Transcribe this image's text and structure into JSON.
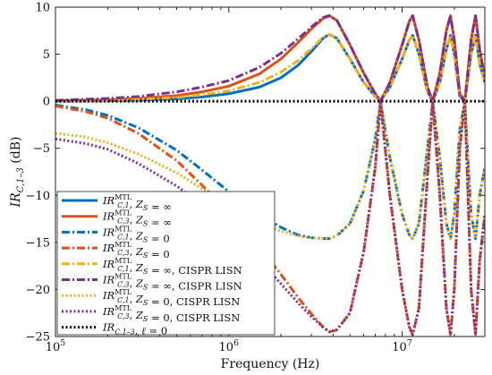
{
  "chart_data": {
    "type": "line",
    "xlabel": "Frequency (Hz)",
    "ylabel": "IR_{C,1-3} (dB)",
    "xscale": "log",
    "xlim": [
      100000,
      30000000
    ],
    "ylim": [
      -25,
      10
    ],
    "x_ticks": [
      {
        "value": 100000,
        "base": "10",
        "exp": "5"
      },
      {
        "value": 1000000,
        "base": "10",
        "exp": "6"
      },
      {
        "value": 10000000,
        "base": "10",
        "exp": "7"
      }
    ],
    "y_ticks": [
      10,
      5,
      0,
      -5,
      -10,
      -15,
      -20,
      -25
    ],
    "grid": false,
    "legend_position": "lower-left",
    "series": [
      {
        "name": "IR_{C,1}^{MTL}, Z_S = ∞",
        "color": "#0072BD",
        "dash": "solid",
        "x": [
          100000,
          200000,
          300000,
          500000,
          700000,
          1000000,
          1500000,
          2000000,
          2500000,
          3000000,
          3500000,
          3800000,
          4200000,
          5000000,
          6000000,
          7000000,
          7500000,
          8500000,
          10000000,
          11000000,
          11500000,
          12500000,
          14000000,
          15000000,
          16500000,
          18000000,
          19000000,
          20000000,
          21500000,
          23000000,
          25000000,
          26500000,
          28000000,
          30000000
        ],
        "y": [
          0,
          0.05,
          0.1,
          0.25,
          0.45,
          0.8,
          1.5,
          2.5,
          3.8,
          5.3,
          6.7,
          7.1,
          6.7,
          4.5,
          2.0,
          0.5,
          0.0,
          1.5,
          4.5,
          6.5,
          7.0,
          5.0,
          1.0,
          0.0,
          2.0,
          5.5,
          7.0,
          5.0,
          0.5,
          0.0,
          5.0,
          7.0,
          4.0,
          2.0
        ]
      },
      {
        "name": "IR_{C,3}^{MTL}, Z_S = ∞",
        "color": "#D95319",
        "dash": "solid",
        "x": [
          100000,
          200000,
          300000,
          500000,
          700000,
          1000000,
          1500000,
          2000000,
          2500000,
          3000000,
          3500000,
          3800000,
          4200000,
          5000000,
          6000000,
          7000000,
          7500000,
          8500000,
          10000000,
          11000000,
          11500000,
          12500000,
          14000000,
          15000000,
          16500000,
          18000000,
          19000000,
          20000000,
          21500000,
          23000000,
          25000000,
          26500000,
          28000000,
          30000000
        ],
        "y": [
          0.05,
          0.15,
          0.3,
          0.6,
          1.0,
          1.6,
          2.9,
          4.5,
          6.2,
          7.7,
          8.8,
          9.1,
          8.6,
          6.0,
          3.0,
          0.8,
          0.0,
          2.0,
          6.0,
          8.5,
          9.1,
          6.5,
          1.5,
          0.0,
          3.0,
          7.5,
          9.1,
          6.5,
          0.8,
          0.0,
          6.5,
          9.1,
          5.5,
          2.5
        ]
      },
      {
        "name": "IR_{C,1}^{MTL}, Z_S = 0",
        "color": "#0072BD",
        "dash": "dashdot",
        "x": [
          100000,
          150000,
          200000,
          300000,
          500000,
          700000,
          1000000,
          1500000,
          2000000,
          2500000,
          3000000,
          3500000,
          3800000,
          4200000,
          5000000,
          6000000,
          7000000,
          7500000,
          8500000,
          10000000,
          11000000,
          11500000,
          12500000,
          14000000,
          15000000,
          16500000,
          18000000,
          19000000,
          20000000,
          21500000,
          23000000,
          25000000,
          26500000,
          28000000,
          30000000
        ],
        "y": [
          -0.4,
          -0.9,
          -1.5,
          -2.8,
          -5.2,
          -7.3,
          -9.6,
          -12.0,
          -13.4,
          -14.2,
          -14.5,
          -14.6,
          -14.6,
          -14.3,
          -13.0,
          -9.5,
          -4.0,
          0.0,
          -6.0,
          -12.0,
          -14.2,
          -14.6,
          -13.0,
          -5.0,
          0.0,
          -6.0,
          -13.0,
          -14.6,
          -12.0,
          -3.0,
          0.0,
          -12.0,
          -14.6,
          -10.0,
          -7.0
        ]
      },
      {
        "name": "IR_{C,3}^{MTL}, Z_S = 0",
        "color": "#D95319",
        "dash": "dashdot",
        "x": [
          100000,
          150000,
          200000,
          300000,
          500000,
          700000,
          1000000,
          1500000,
          2000000,
          2500000,
          3000000,
          3500000,
          3800000,
          4200000,
          5000000,
          6000000,
          7000000,
          7500000,
          8500000,
          10000000,
          11000000,
          11500000,
          12500000,
          14000000,
          15000000,
          16500000,
          18000000,
          19000000,
          20000000,
          21500000,
          23000000,
          25000000,
          26500000,
          28000000,
          30000000
        ],
        "y": [
          -0.5,
          -1.1,
          -1.8,
          -3.4,
          -6.3,
          -8.9,
          -11.9,
          -15.5,
          -18.4,
          -20.8,
          -22.6,
          -24.0,
          -24.5,
          -24.3,
          -22.5,
          -16.0,
          -7.0,
          0.0,
          -10.0,
          -20.0,
          -24.0,
          -24.8,
          -22.0,
          -8.0,
          0.0,
          -10.0,
          -22.0,
          -24.8,
          -20.0,
          -5.0,
          0.0,
          -20.0,
          -24.8,
          -17.0,
          -12.0
        ]
      },
      {
        "name": "IR_{C,1}^{MTL}, Z_S = ∞, CISPR LISN",
        "color": "#EDB120",
        "dash": "dashdot",
        "x": [
          100000,
          200000,
          300000,
          500000,
          700000,
          1000000,
          1500000,
          2000000,
          2500000,
          3000000,
          3500000,
          3800000,
          4200000,
          5000000,
          6000000,
          7000000,
          7500000,
          8500000,
          10000000,
          11000000,
          11500000,
          12500000,
          14000000,
          15000000,
          16500000,
          18000000,
          19000000,
          20000000,
          21500000,
          23000000,
          25000000,
          26500000,
          28000000,
          30000000
        ],
        "y": [
          0,
          0.1,
          0.2,
          0.4,
          0.7,
          1.1,
          2.0,
          3.1,
          4.3,
          5.6,
          6.8,
          7.1,
          6.7,
          4.5,
          2.0,
          0.5,
          0.0,
          1.5,
          4.5,
          6.5,
          7.0,
          5.0,
          1.0,
          0.0,
          2.0,
          5.5,
          7.0,
          5.0,
          0.5,
          0.0,
          5.0,
          7.0,
          4.0,
          2.0
        ]
      },
      {
        "name": "IR_{C,3}^{MTL}, Z_S = ∞, CISPR LISN",
        "color": "#7E2F8E",
        "dash": "dashdot",
        "x": [
          100000,
          200000,
          300000,
          500000,
          700000,
          1000000,
          1500000,
          2000000,
          2500000,
          3000000,
          3500000,
          3800000,
          4200000,
          5000000,
          6000000,
          7000000,
          7500000,
          8500000,
          10000000,
          11000000,
          11500000,
          12500000,
          14000000,
          15000000,
          16500000,
          18000000,
          19000000,
          20000000,
          21500000,
          23000000,
          25000000,
          26500000,
          28000000,
          30000000
        ],
        "y": [
          0.1,
          0.3,
          0.5,
          1.0,
          1.5,
          2.2,
          3.6,
          5.1,
          6.6,
          7.9,
          8.9,
          9.1,
          8.6,
          6.0,
          3.0,
          0.8,
          0.0,
          2.0,
          6.0,
          8.5,
          9.1,
          6.5,
          1.5,
          0.0,
          3.0,
          7.5,
          9.1,
          6.5,
          0.8,
          0.0,
          6.5,
          9.1,
          5.5,
          2.5
        ]
      },
      {
        "name": "IR_{C,1}^{MTL}, Z_S = 0, CISPR LISN",
        "color": "#EDB120",
        "dash": "dotted",
        "x": [
          100000,
          150000,
          200000,
          300000,
          500000,
          700000,
          1000000,
          1500000,
          2000000,
          2500000,
          3000000,
          3500000,
          3800000,
          4200000,
          5000000,
          6000000,
          7000000,
          7500000,
          8500000,
          10000000,
          11000000,
          11500000,
          12500000,
          14000000,
          15000000,
          16500000,
          18000000,
          19000000,
          20000000,
          21500000,
          23000000,
          25000000,
          26500000,
          28000000,
          30000000
        ],
        "y": [
          -3.4,
          -3.8,
          -4.4,
          -5.6,
          -7.6,
          -9.3,
          -11.2,
          -12.9,
          -13.8,
          -14.3,
          -14.5,
          -14.6,
          -14.6,
          -14.3,
          -13.0,
          -9.5,
          -4.0,
          0.0,
          -6.0,
          -12.0,
          -14.2,
          -14.6,
          -13.0,
          -5.0,
          0.0,
          -6.0,
          -13.0,
          -14.6,
          -12.0,
          -3.0,
          0.0,
          -12.0,
          -14.6,
          -10.0,
          -7.0
        ]
      },
      {
        "name": "IR_{C,3}^{MTL}, Z_S = 0, CISPR LISN",
        "color": "#7E2F8E",
        "dash": "dotted",
        "x": [
          100000,
          150000,
          200000,
          300000,
          500000,
          700000,
          1000000,
          1500000,
          2000000,
          2500000,
          3000000,
          3500000,
          3800000,
          4200000,
          5000000,
          6000000,
          7000000,
          7500000,
          8500000,
          10000000,
          11000000,
          11500000,
          12500000,
          14000000,
          15000000,
          16500000,
          18000000,
          19000000,
          20000000,
          21500000,
          23000000,
          25000000,
          26500000,
          28000000,
          30000000
        ],
        "y": [
          -4.0,
          -4.5,
          -5.1,
          -6.6,
          -9.0,
          -11.0,
          -13.5,
          -16.8,
          -19.4,
          -21.4,
          -22.9,
          -24.0,
          -24.5,
          -24.3,
          -22.5,
          -16.0,
          -7.0,
          0.0,
          -10.0,
          -20.0,
          -24.0,
          -24.8,
          -22.0,
          -8.0,
          0.0,
          -10.0,
          -22.0,
          -24.8,
          -20.0,
          -5.0,
          0.0,
          -20.0,
          -24.8,
          -17.0,
          -12.0
        ]
      },
      {
        "name": "IR_{C,1-3}, ℓ = 0",
        "color": "#000000",
        "dash": "dotted",
        "x": [
          100000,
          30000000
        ],
        "y": [
          0,
          0
        ]
      }
    ]
  }
}
